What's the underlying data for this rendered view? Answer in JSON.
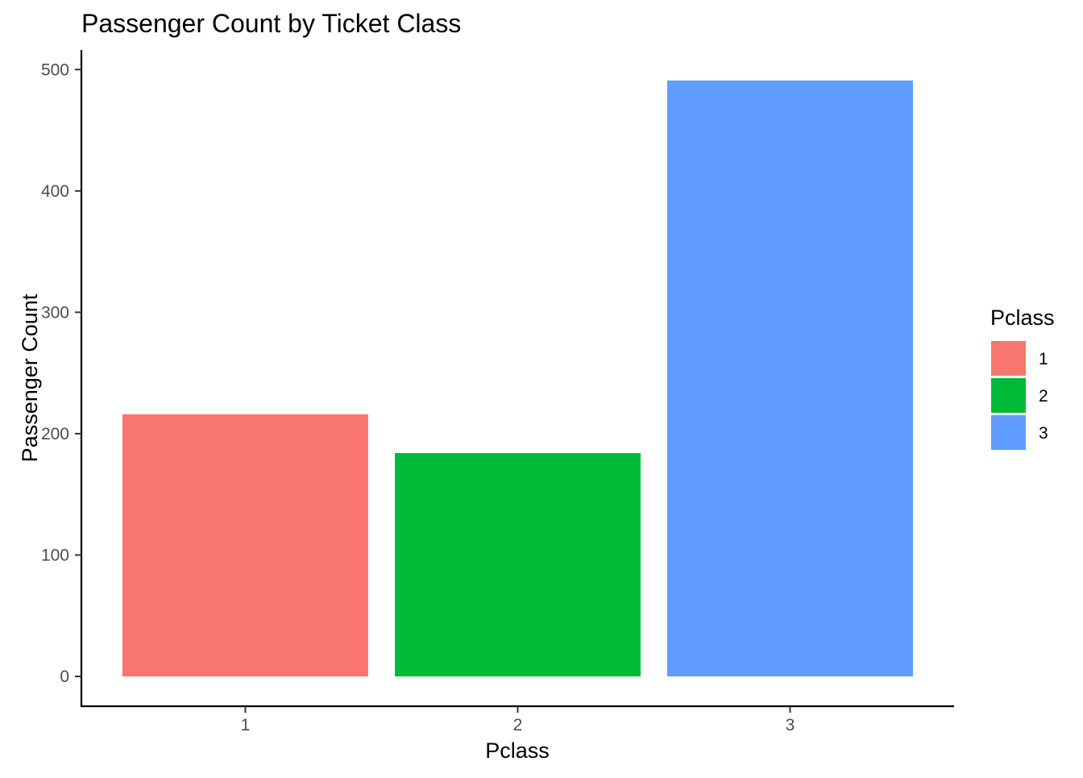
{
  "chart_data": {
    "type": "bar",
    "title": "Passenger Count by Ticket Class",
    "xlabel": "Pclass",
    "ylabel": "Passenger Count",
    "categories": [
      "1",
      "2",
      "3"
    ],
    "values": [
      216,
      184,
      491
    ],
    "colors": [
      "#F8766D",
      "#00BA38",
      "#619CFF"
    ],
    "ylim": [
      0,
      510
    ],
    "yticks": [
      0,
      100,
      200,
      300,
      400,
      500
    ],
    "grid": false,
    "legend": {
      "title": "Pclass",
      "placement": "right",
      "entries": [
        "1",
        "2",
        "3"
      ]
    }
  }
}
